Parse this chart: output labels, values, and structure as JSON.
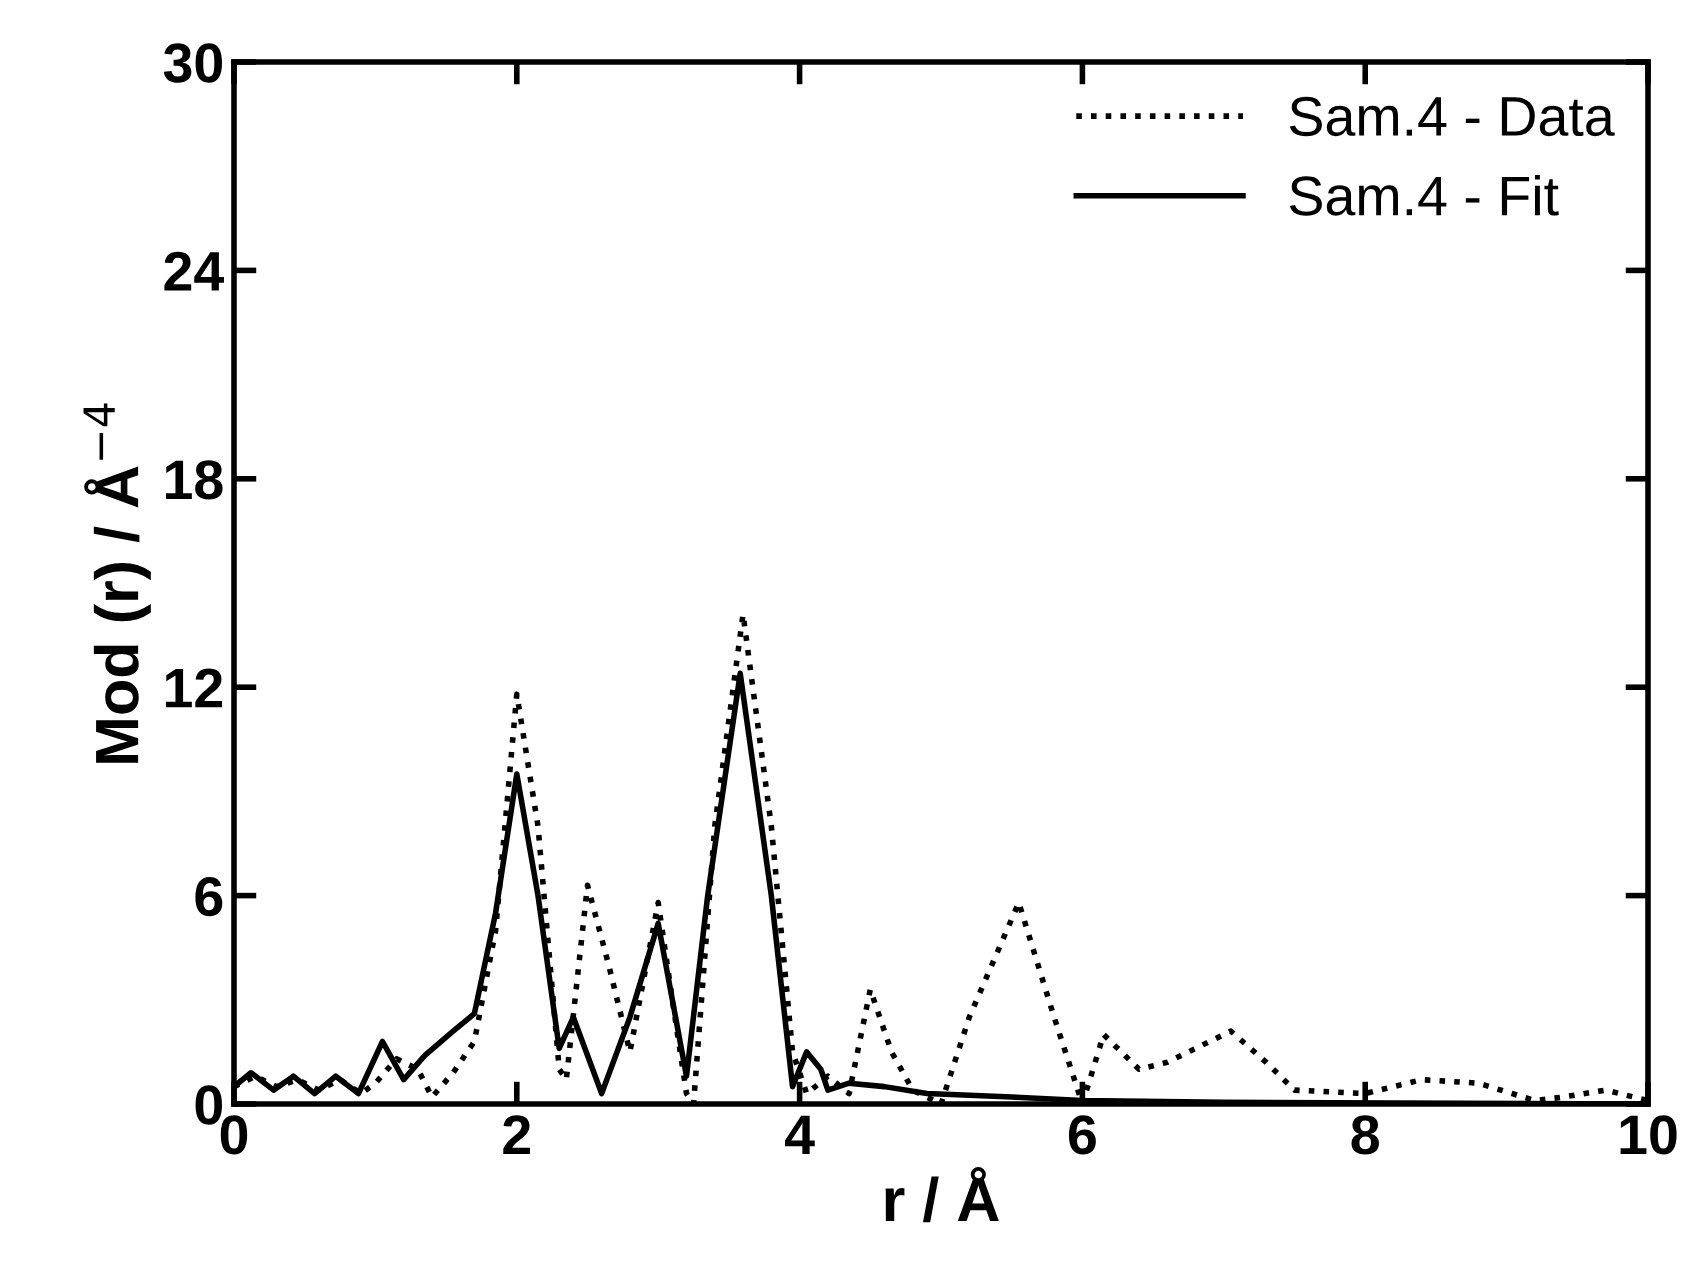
{
  "chart_data": {
    "type": "line",
    "xlabel": "r / Å",
    "ylabel": "Mod (r) / Å$^{−4}$",
    "xlim": [
      0,
      10
    ],
    "ylim": [
      0,
      30
    ],
    "xticks": [
      0,
      2,
      4,
      6,
      8,
      10
    ],
    "yticks": [
      0,
      6,
      12,
      18,
      24,
      30
    ],
    "legend": "top right",
    "grid": false,
    "series": [
      {
        "name": "Sam.4 - Data",
        "color": "#000000",
        "line_style": "dotted",
        "x": [
          0,
          0.15,
          0.3,
          0.45,
          0.6,
          0.75,
          0.9,
          1.0,
          1.15,
          1.3,
          1.4,
          1.55,
          1.7,
          1.85,
          2.0,
          2.15,
          2.3,
          2.35,
          2.5,
          2.65,
          2.8,
          3.0,
          3.1,
          3.2,
          3.25,
          3.4,
          3.6,
          3.8,
          3.95,
          4.05,
          4.2,
          4.35,
          4.5,
          4.65,
          4.8,
          5.0,
          5.2,
          5.55,
          5.8,
          6.0,
          6.15,
          6.4,
          6.6,
          7.05,
          7.3,
          7.5,
          8.0,
          8.4,
          8.8,
          9.2,
          9.4,
          9.7,
          10
        ],
        "values": [
          0.5,
          0.8,
          0.5,
          0.7,
          0.4,
          0.7,
          0.3,
          0.6,
          1.3,
          1.0,
          0.2,
          0.9,
          1.8,
          5,
          11.8,
          8,
          1,
          0.7,
          6.3,
          4,
          1.5,
          5.8,
          3,
          0.3,
          0,
          8,
          14.1,
          8,
          1.5,
          0.3,
          0.8,
          0.3,
          3.3,
          1.5,
          0.4,
          0,
          2.5,
          5.8,
          2.5,
          0,
          2.0,
          1,
          1.2,
          2.1,
          1.2,
          0.4,
          0.3,
          0.7,
          0.6,
          0.1,
          0.2,
          0.4,
          0.1
        ]
      },
      {
        "name": "Sam.4 - Fit",
        "color": "#000000",
        "line_style": "solid",
        "x": [
          0,
          0.12,
          0.28,
          0.42,
          0.57,
          0.72,
          0.88,
          1.05,
          1.2,
          1.35,
          1.55,
          1.7,
          1.85,
          2.0,
          2.15,
          2.3,
          2.4,
          2.6,
          2.8,
          3.0,
          3.1,
          3.2,
          3.35,
          3.58,
          3.8,
          3.95,
          4.05,
          4.15,
          4.2,
          4.35,
          4.6,
          4.9,
          5.2,
          5.5,
          6.0,
          7.0,
          10
        ],
        "values": [
          0.5,
          0.9,
          0.4,
          0.8,
          0.3,
          0.8,
          0.3,
          1.8,
          0.7,
          1.4,
          2.1,
          2.6,
          5.5,
          9.5,
          6,
          1.6,
          2.5,
          0.3,
          2.5,
          5.2,
          3,
          0.8,
          6,
          12.4,
          6,
          0.5,
          1.5,
          1.0,
          0.4,
          0.6,
          0.5,
          0.3,
          0.25,
          0.2,
          0.1,
          0.05,
          0
        ]
      }
    ]
  }
}
